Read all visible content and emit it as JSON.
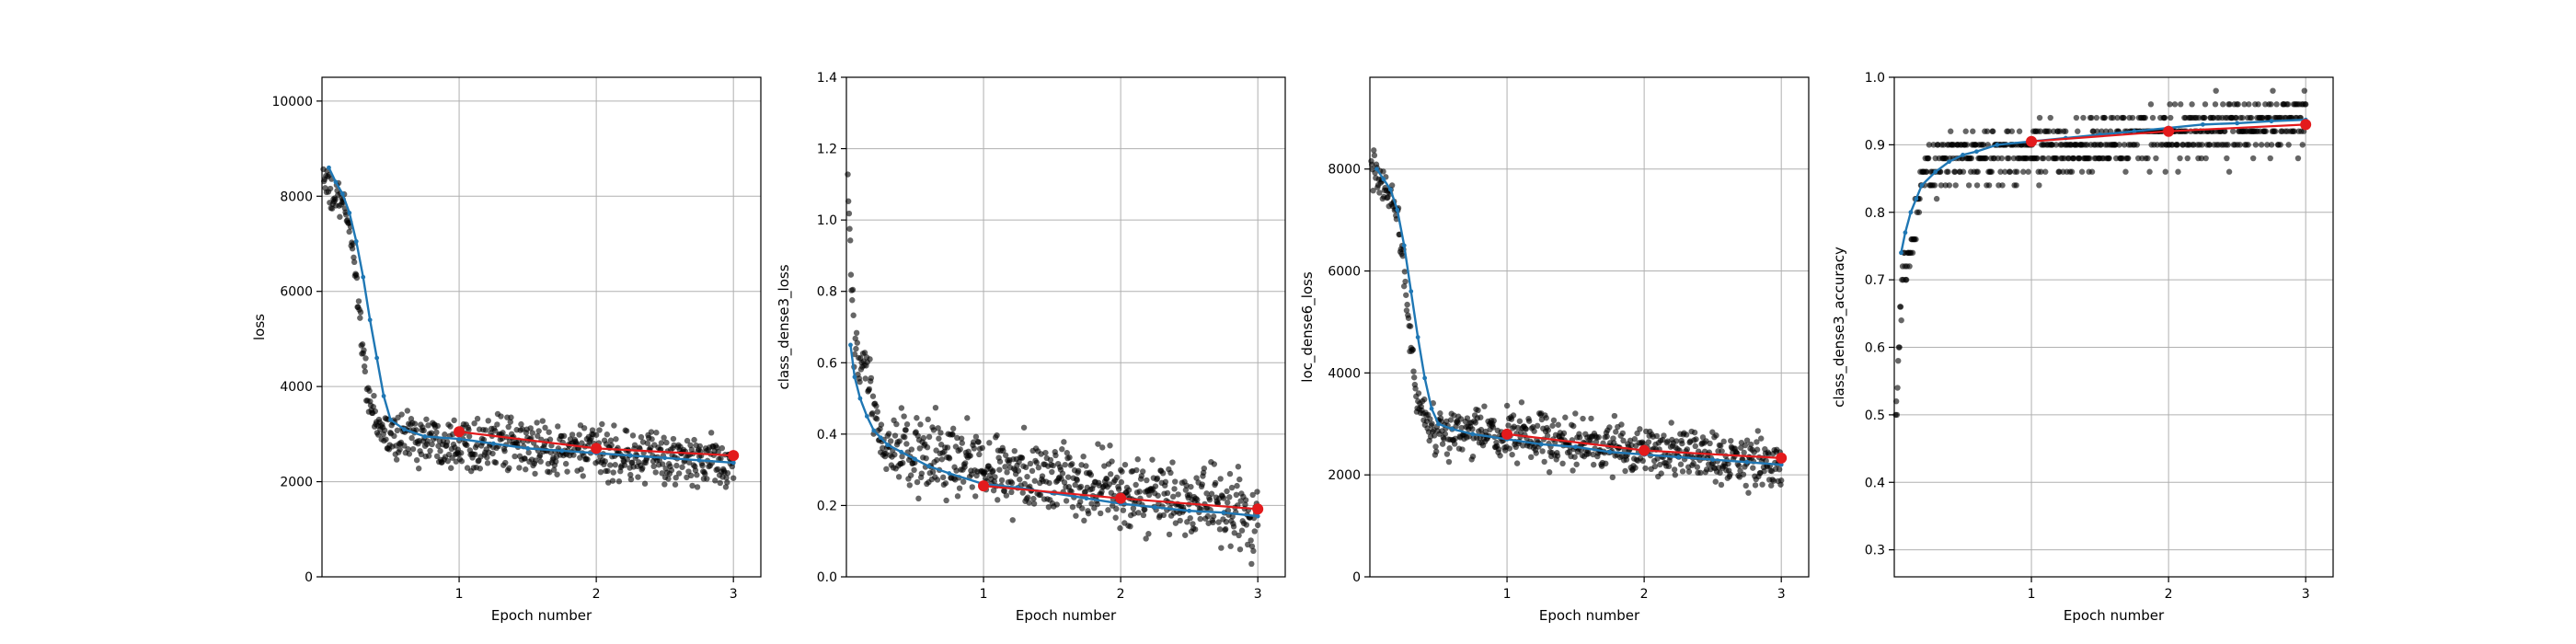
{
  "chart_data": [
    {
      "type": "scatter",
      "xlabel": "Epoch number",
      "ylabel": "loss",
      "xlim": [
        0,
        3.2
      ],
      "ylim": [
        0,
        10500
      ],
      "x_ticks": [
        1,
        2,
        3
      ],
      "x_tick_labels": [
        "1",
        "2",
        "3"
      ],
      "y_ticks": [
        0,
        2000,
        4000,
        6000,
        8000,
        10000
      ],
      "y_tick_labels": [
        "0",
        "2000",
        "4000",
        "6000",
        "8000",
        "10000"
      ],
      "grid": true,
      "colors": {
        "raw": "#000000",
        "smoothed": "#1f77b4",
        "epoch_mean": "#e31a1c"
      },
      "raw_profile": {
        "start": 8600,
        "start_fall": 8000,
        "drop_end_x": 0.45,
        "plateau": 3000,
        "end": 2350,
        "noise": 380
      },
      "series": [
        {
          "type": "line",
          "x": [
            0.05,
            0.1,
            0.15,
            0.2,
            0.25,
            0.3,
            0.35,
            0.4,
            0.45,
            0.5,
            0.6,
            0.75,
            1.0,
            1.25,
            1.5,
            1.75,
            2.0,
            2.25,
            2.5,
            2.75,
            3.0
          ],
          "y": [
            8600,
            8300,
            8050,
            7650,
            7050,
            6300,
            5400,
            4600,
            3800,
            3300,
            3100,
            2950,
            2900,
            2800,
            2700,
            2650,
            2600,
            2550,
            2500,
            2450,
            2400
          ]
        },
        {
          "type": "line",
          "x": [
            1,
            2,
            3
          ],
          "y": [
            3050,
            2700,
            2550
          ]
        }
      ]
    },
    {
      "type": "scatter",
      "xlabel": "Epoch number",
      "ylabel": "class_dense3_loss",
      "xlim": [
        0,
        3.2
      ],
      "ylim": [
        0,
        1.4
      ],
      "x_ticks": [
        1,
        2,
        3
      ],
      "x_tick_labels": [
        "1",
        "2",
        "3"
      ],
      "y_ticks": [
        0,
        0.2,
        0.4,
        0.6,
        0.8,
        1.0,
        1.2,
        1.4
      ],
      "y_tick_labels": [
        "0.0",
        "0.2",
        "0.4",
        "0.6",
        "0.8",
        "1.0",
        "1.2",
        "1.4"
      ],
      "grid": true,
      "colors": {
        "raw": "#000000",
        "smoothed": "#1f77b4",
        "epoch_mean": "#e31a1c"
      },
      "raw_profile": {
        "start": 1.2,
        "start_fall": 0.6,
        "drop_end_x": 0.3,
        "plateau": 0.36,
        "end": 0.17,
        "noise": 0.075
      },
      "series": [
        {
          "type": "line",
          "x": [
            0.03,
            0.06,
            0.1,
            0.15,
            0.2,
            0.25,
            0.3,
            0.4,
            0.5,
            0.6,
            0.75,
            1.0,
            1.25,
            1.5,
            1.75,
            2.0,
            2.25,
            2.5,
            2.75,
            3.0
          ],
          "y": [
            0.65,
            0.56,
            0.5,
            0.45,
            0.41,
            0.39,
            0.37,
            0.35,
            0.33,
            0.31,
            0.29,
            0.26,
            0.25,
            0.235,
            0.22,
            0.205,
            0.195,
            0.185,
            0.18,
            0.17
          ]
        },
        {
          "type": "line",
          "x": [
            1,
            2,
            3
          ],
          "y": [
            0.255,
            0.22,
            0.19
          ]
        }
      ]
    },
    {
      "type": "scatter",
      "xlabel": "Epoch number",
      "ylabel": "loc_dense6_loss",
      "xlim": [
        0,
        3.2
      ],
      "ylim": [
        0,
        9800
      ],
      "x_ticks": [
        1,
        2,
        3
      ],
      "x_tick_labels": [
        "1",
        "2",
        "3"
      ],
      "y_ticks": [
        0,
        2000,
        4000,
        6000,
        8000
      ],
      "y_tick_labels": [
        "0",
        "2000",
        "4000",
        "6000",
        "8000"
      ],
      "grid": true,
      "colors": {
        "raw": "#000000",
        "smoothed": "#1f77b4",
        "epoch_mean": "#e31a1c"
      },
      "raw_profile": {
        "start": 8200,
        "start_fall": 7700,
        "drop_end_x": 0.45,
        "plateau": 2900,
        "end": 2200,
        "noise": 350
      },
      "series": [
        {
          "type": "line",
          "x": [
            0.05,
            0.1,
            0.15,
            0.2,
            0.25,
            0.3,
            0.35,
            0.4,
            0.45,
            0.5,
            0.6,
            0.75,
            1.0,
            1.25,
            1.5,
            1.75,
            2.0,
            2.25,
            2.5,
            2.75,
            3.0
          ],
          "y": [
            8000,
            7800,
            7600,
            7200,
            6500,
            5600,
            4700,
            3900,
            3300,
            3000,
            2900,
            2800,
            2700,
            2600,
            2550,
            2450,
            2400,
            2350,
            2300,
            2250,
            2200
          ]
        },
        {
          "type": "line",
          "x": [
            1,
            2,
            3
          ],
          "y": [
            2800,
            2480,
            2330
          ]
        }
      ]
    },
    {
      "type": "scatter",
      "xlabel": "Epoch number",
      "ylabel": "class_dense3_accuracy",
      "xlim": [
        0,
        3.2
      ],
      "ylim": [
        0.26,
        1.0
      ],
      "x_ticks": [
        1,
        2,
        3
      ],
      "x_tick_labels": [
        "1",
        "2",
        "3"
      ],
      "y_ticks": [
        0.3,
        0.4,
        0.5,
        0.6,
        0.7,
        0.8,
        0.9,
        1.0
      ],
      "y_tick_labels": [
        "0.3",
        "0.4",
        "0.5",
        "0.6",
        "0.7",
        "0.8",
        "0.9",
        "1.0"
      ],
      "grid": true,
      "colors": {
        "raw": "#000000",
        "smoothed": "#1f77b4",
        "epoch_mean": "#e31a1c"
      },
      "raw_profile": {
        "start": 0.45,
        "start_fall": 0.72,
        "drop_end_x": 0.25,
        "plateau": 0.87,
        "end": 0.94,
        "noise": 0.03,
        "quantize": 0.02,
        "clip_max": 1.0
      },
      "series": [
        {
          "type": "line",
          "x": [
            0.05,
            0.08,
            0.12,
            0.16,
            0.2,
            0.3,
            0.4,
            0.5,
            0.6,
            0.75,
            1.0,
            1.25,
            1.5,
            1.75,
            2.0,
            2.25,
            2.5,
            2.75,
            3.0
          ],
          "y": [
            0.74,
            0.77,
            0.8,
            0.82,
            0.84,
            0.86,
            0.875,
            0.885,
            0.89,
            0.9,
            0.905,
            0.91,
            0.915,
            0.92,
            0.925,
            0.93,
            0.932,
            0.935,
            0.937
          ]
        },
        {
          "type": "line",
          "x": [
            1,
            2,
            3
          ],
          "y": [
            0.905,
            0.92,
            0.93
          ]
        }
      ]
    }
  ]
}
